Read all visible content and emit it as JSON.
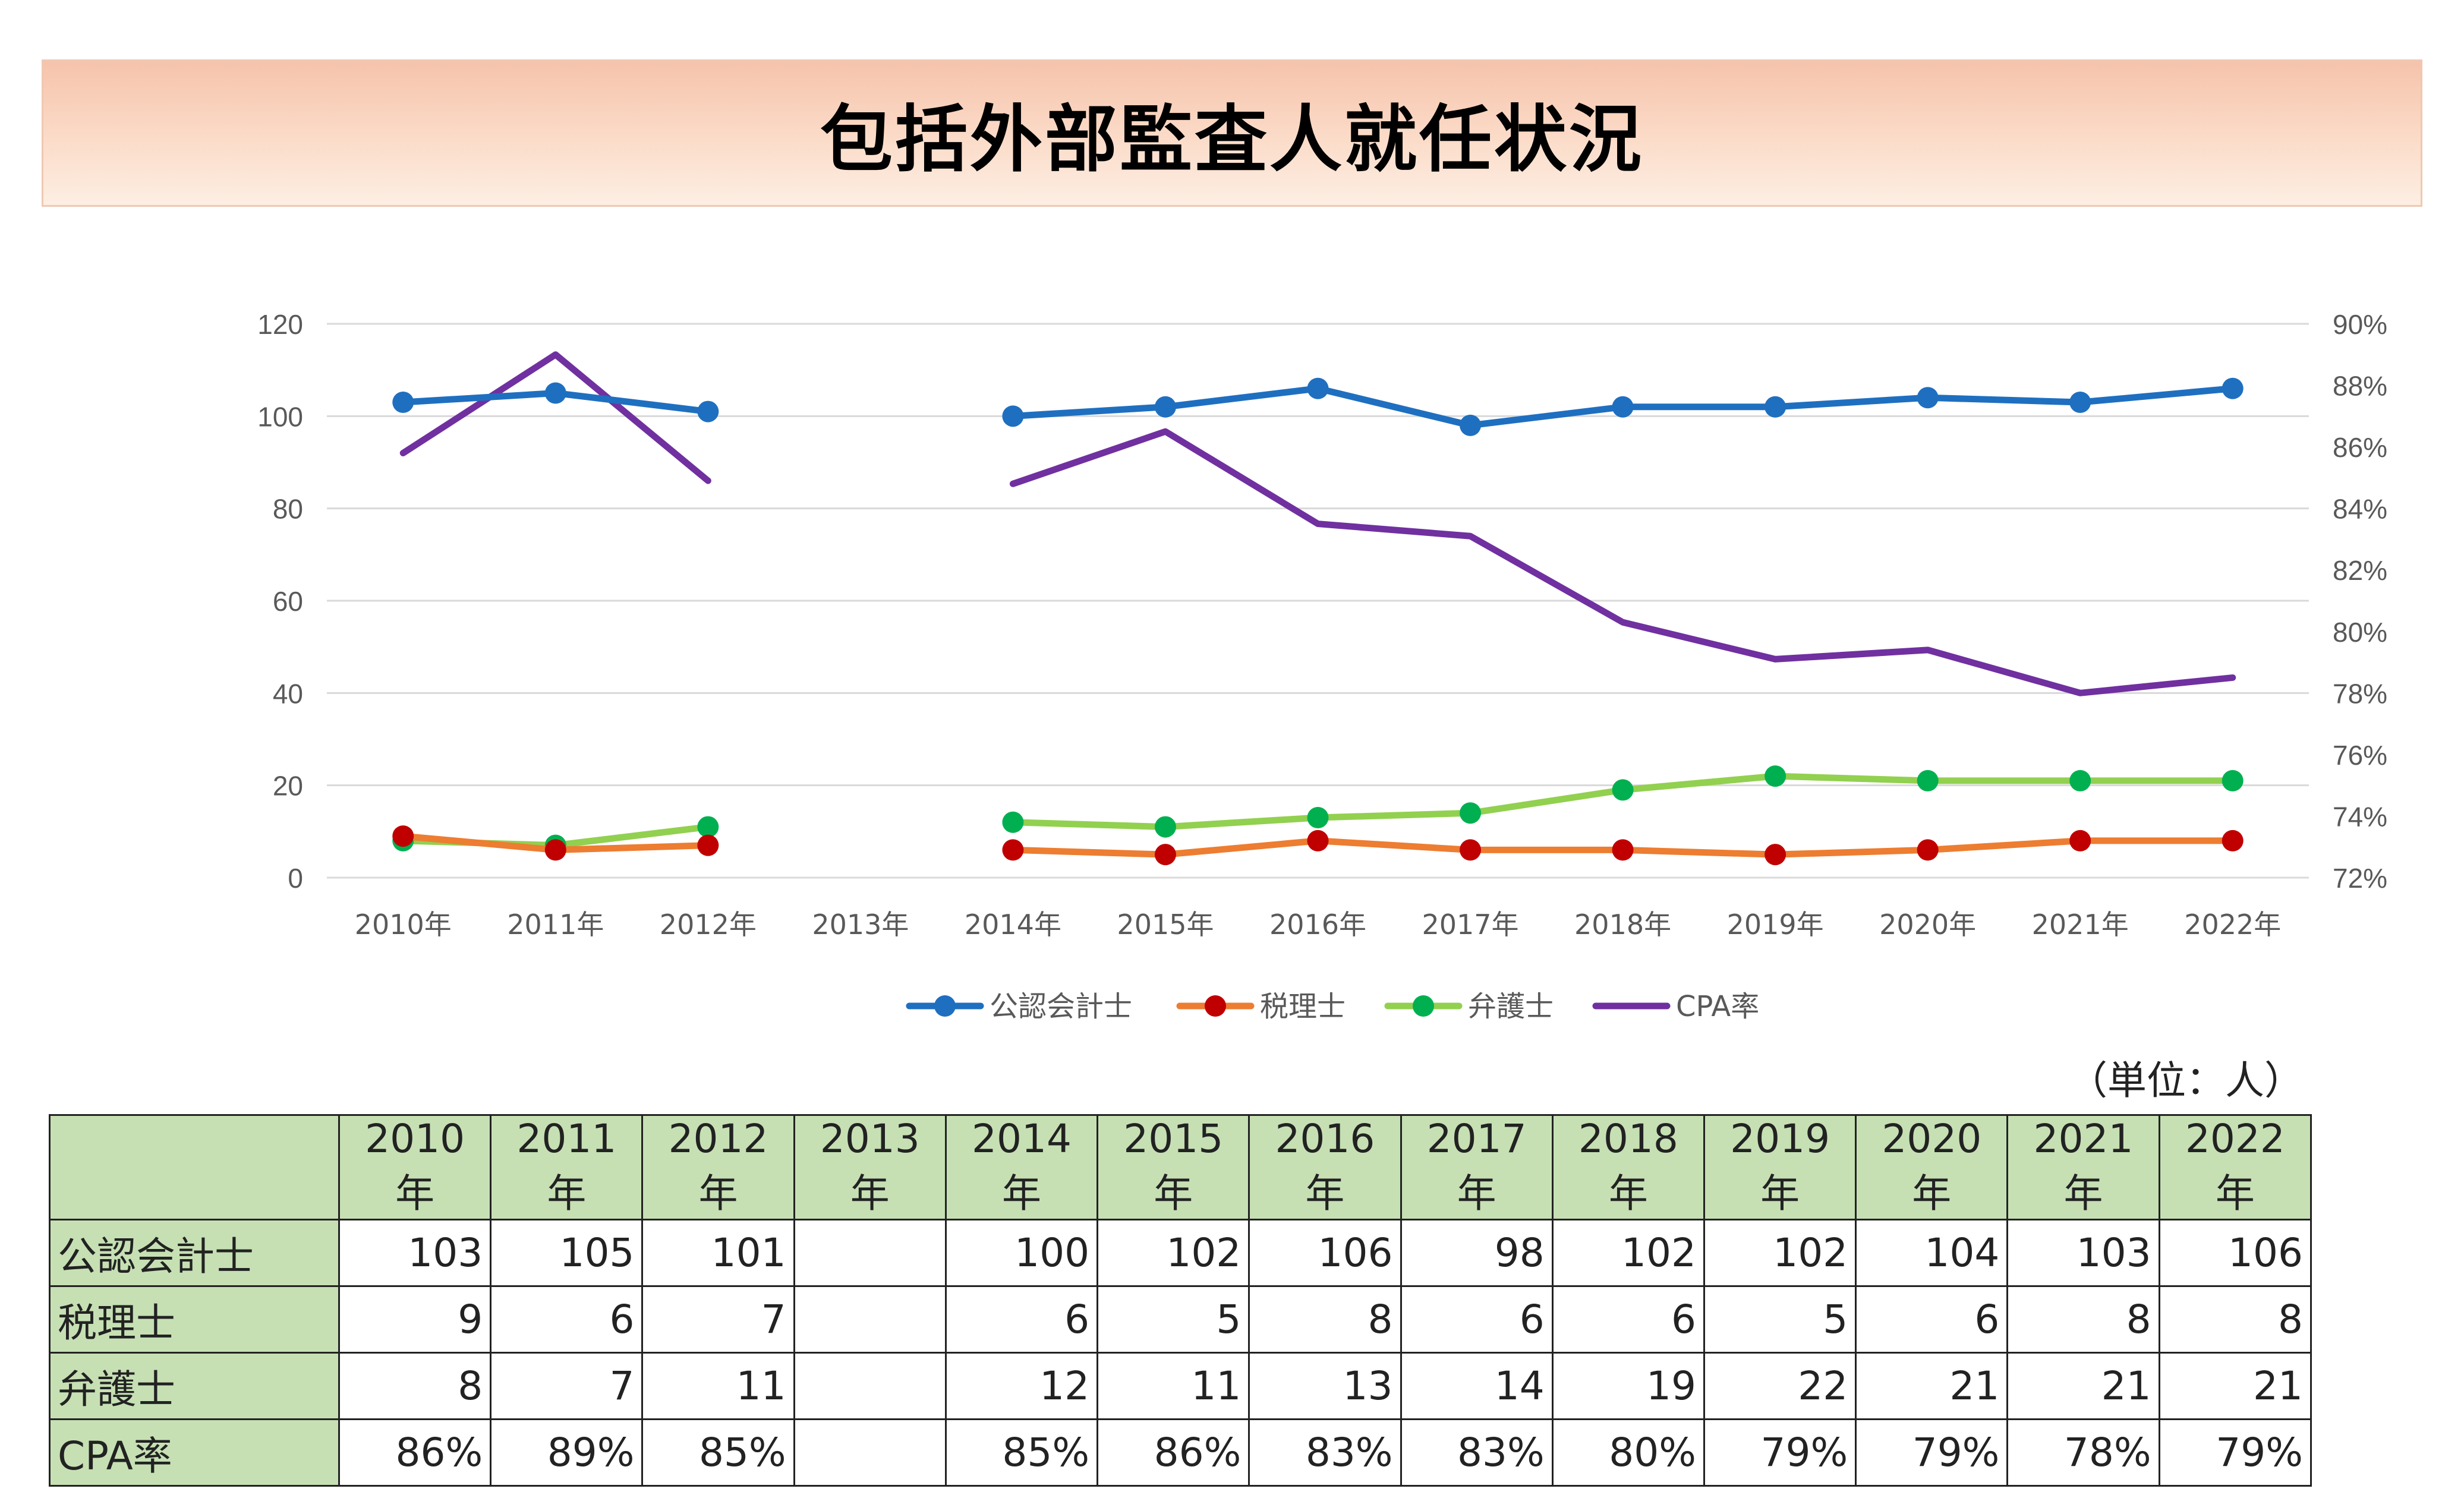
{
  "title": "包括外部監査人就任状況",
  "unit_note": "（単位：人）",
  "colors": {
    "cpa_accountant": "#1f6fc0",
    "tax_accountant": "#ed7d31",
    "tax_marker": "#c00000",
    "lawyer": "#92d050",
    "lawyer_marker": "#00b050",
    "cpa_rate": "#7030a0",
    "table_header": "#c6e0b4",
    "title_band": "#f8cbad"
  },
  "chart_data": {
    "type": "line",
    "categories": [
      "2010年",
      "2011年",
      "2012年",
      "2013年",
      "2014年",
      "2015年",
      "2016年",
      "2017年",
      "2018年",
      "2019年",
      "2020年",
      "2021年",
      "2022年"
    ],
    "series": [
      {
        "name": "公認会計士",
        "axis": "left",
        "markers": true,
        "values": [
          103,
          105,
          101,
          null,
          100,
          102,
          106,
          98,
          102,
          102,
          104,
          103,
          106
        ]
      },
      {
        "name": "税理士",
        "axis": "left",
        "markers": true,
        "values": [
          9,
          6,
          7,
          null,
          6,
          5,
          8,
          6,
          6,
          5,
          6,
          8,
          8
        ]
      },
      {
        "name": "弁護士",
        "axis": "left",
        "markers": true,
        "values": [
          8,
          7,
          11,
          null,
          12,
          11,
          13,
          14,
          19,
          22,
          21,
          21,
          21
        ]
      },
      {
        "name": "CPA率",
        "axis": "right",
        "markers": false,
        "values": [
          85.8,
          89.0,
          84.9,
          null,
          84.8,
          86.5,
          83.5,
          83.1,
          80.3,
          79.1,
          79.4,
          78.0,
          78.5
        ]
      }
    ],
    "y_left": {
      "min": 0,
      "max": 120,
      "ticks": [
        "0",
        "20",
        "40",
        "60",
        "80",
        "100",
        "120"
      ]
    },
    "y_right": {
      "min": 72,
      "max": 90,
      "ticks": [
        "72%",
        "74%",
        "76%",
        "78%",
        "80%",
        "82%",
        "84%",
        "86%",
        "88%",
        "90%"
      ]
    },
    "grid": true,
    "legend": "bottom"
  },
  "table": {
    "header": [
      "",
      "2010年",
      "2011年",
      "2012年",
      "2013年",
      "2014年",
      "2015年",
      "2016年",
      "2017年",
      "2018年",
      "2019年",
      "2020年",
      "2021年",
      "2022年"
    ],
    "rows": [
      {
        "label": "公認会計士",
        "cells": [
          "103",
          "105",
          "101",
          "",
          "100",
          "102",
          "106",
          "98",
          "102",
          "102",
          "104",
          "103",
          "106"
        ]
      },
      {
        "label": "税理士",
        "cells": [
          "9",
          "6",
          "7",
          "",
          "6",
          "5",
          "8",
          "6",
          "6",
          "5",
          "6",
          "8",
          "8"
        ]
      },
      {
        "label": "弁護士",
        "cells": [
          "8",
          "7",
          "11",
          "",
          "12",
          "11",
          "13",
          "14",
          "19",
          "22",
          "21",
          "21",
          "21"
        ]
      },
      {
        "label": "CPA率",
        "cells": [
          "86%",
          "89%",
          "85%",
          "",
          "85%",
          "86%",
          "83%",
          "83%",
          "80%",
          "79%",
          "79%",
          "78%",
          "79%"
        ]
      }
    ]
  }
}
